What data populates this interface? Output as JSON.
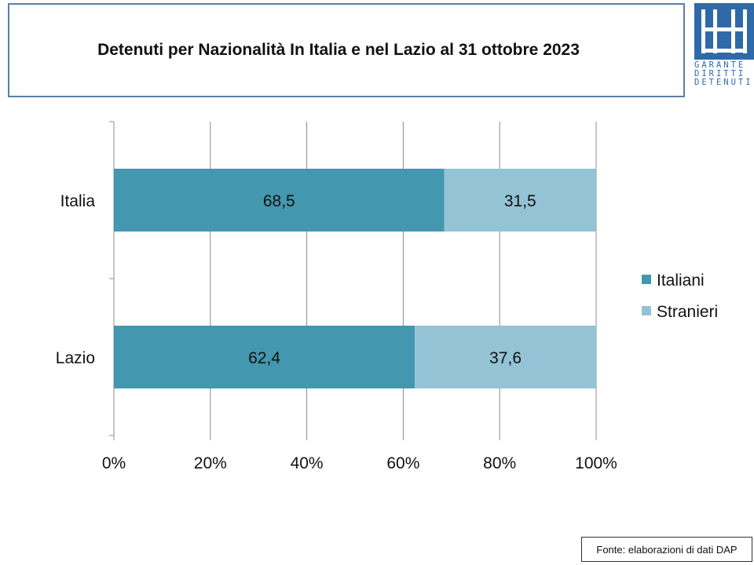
{
  "header": {
    "title": "Detenuti per Nazionalità In Italia e nel Lazio al 31 ottobre 2023"
  },
  "logo": {
    "line1": "GARANTE",
    "line2": "DIRITTI",
    "line3": "DETENUTI",
    "color": "#2e6aa8"
  },
  "source": {
    "text": "Fonte: elaborazioni di dati DAP"
  },
  "chart_data": {
    "type": "bar",
    "orientation": "horizontal",
    "stacked": "percent",
    "categories": [
      "Italia",
      "Lazio"
    ],
    "series": [
      {
        "name": "Italiani",
        "values": [
          68.5,
          62.4
        ],
        "labels": [
          "68,5",
          "62,4"
        ],
        "color": "#4397ae"
      },
      {
        "name": "Stranieri",
        "values": [
          31.5,
          37.6
        ],
        "labels": [
          "31,5",
          "37,6"
        ],
        "color": "#93c3d4"
      }
    ],
    "x_ticks": [
      "0%",
      "20%",
      "40%",
      "60%",
      "80%",
      "100%"
    ],
    "xlim": [
      0,
      100
    ],
    "grid": true,
    "legend_position": "right"
  }
}
